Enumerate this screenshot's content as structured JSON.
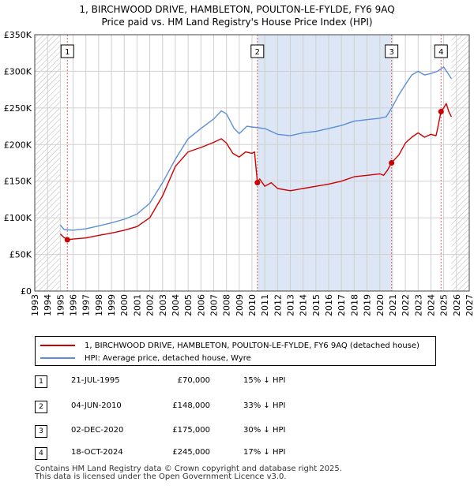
{
  "title_line1": "1, BIRCHWOOD DRIVE, HAMBLETON, POULTON-LE-FYLDE, FY6 9AQ",
  "title_line2": "Price paid vs. HM Land Registry's House Price Index (HPI)",
  "colors": {
    "property": "#cc0000",
    "hpi": "#5b8ed6",
    "shade": "#dde6f5",
    "hatch": "#aaaaaa",
    "grid": "#d0d0d0"
  },
  "chart_data": {
    "type": "line",
    "title": "Price paid vs. HM Land Registry's House Price Index (HPI)",
    "xlabel": "",
    "ylabel": "",
    "xlim": [
      1993,
      2027
    ],
    "ylim": [
      0,
      350000
    ],
    "y_ticks": [
      0,
      50000,
      100000,
      150000,
      200000,
      250000,
      300000,
      350000
    ],
    "y_tick_labels": [
      "£0",
      "£50K",
      "£100K",
      "£150K",
      "£200K",
      "£250K",
      "£300K",
      "£350K"
    ],
    "x_ticks": [
      "1993",
      "1994",
      "1995",
      "1996",
      "1997",
      "1998",
      "1999",
      "2000",
      "2001",
      "2002",
      "2003",
      "2004",
      "2005",
      "2006",
      "2007",
      "2008",
      "2009",
      "2010",
      "2011",
      "2012",
      "2013",
      "2014",
      "2015",
      "2016",
      "2017",
      "2018",
      "2019",
      "2020",
      "2021",
      "2022",
      "2023",
      "2024",
      "2025",
      "2026",
      "2027"
    ],
    "data_start": 1995.0,
    "data_end": 2025.6,
    "series": [
      {
        "name": "1, BIRCHWOOD DRIVE, HAMBLETON, POULTON-LE-FYLDE, FY6 9AQ (detached house)",
        "points": [
          [
            1995.0,
            78000
          ],
          [
            1995.3,
            73000
          ],
          [
            1995.55,
            70000
          ],
          [
            1996,
            71000
          ],
          [
            1997,
            72500
          ],
          [
            1998,
            76000
          ],
          [
            1999,
            79000
          ],
          [
            2000,
            83000
          ],
          [
            2001,
            88000
          ],
          [
            2002,
            100000
          ],
          [
            2003,
            130000
          ],
          [
            2004,
            170000
          ],
          [
            2005,
            190000
          ],
          [
            2006,
            196000
          ],
          [
            2007,
            203000
          ],
          [
            2007.6,
            208000
          ],
          [
            2008,
            202000
          ],
          [
            2008.5,
            188000
          ],
          [
            2009,
            183000
          ],
          [
            2009.5,
            190000
          ],
          [
            2010.0,
            188000
          ],
          [
            2010.2,
            190000
          ],
          [
            2010.42,
            148000
          ],
          [
            2010.6,
            153000
          ],
          [
            2011,
            143000
          ],
          [
            2011.5,
            148000
          ],
          [
            2012,
            140000
          ],
          [
            2013,
            137000
          ],
          [
            2014,
            140000
          ],
          [
            2015,
            143000
          ],
          [
            2016,
            146000
          ],
          [
            2017,
            150000
          ],
          [
            2018,
            156000
          ],
          [
            2019,
            158000
          ],
          [
            2020,
            160000
          ],
          [
            2020.3,
            158000
          ],
          [
            2020.6,
            165000
          ],
          [
            2020.92,
            175000
          ],
          [
            2021.5,
            186000
          ],
          [
            2022,
            202000
          ],
          [
            2022.5,
            210000
          ],
          [
            2023,
            216000
          ],
          [
            2023.5,
            210000
          ],
          [
            2024.0,
            214000
          ],
          [
            2024.4,
            212000
          ],
          [
            2024.5,
            220000
          ],
          [
            2024.79,
            245000
          ],
          [
            2025.0,
            250000
          ],
          [
            2025.2,
            256000
          ],
          [
            2025.4,
            245000
          ],
          [
            2025.6,
            238000
          ]
        ]
      },
      {
        "name": "HPI: Average price, detached house, Wyre",
        "points": [
          [
            1995.0,
            90000
          ],
          [
            1995.3,
            84000
          ],
          [
            1996,
            83000
          ],
          [
            1997,
            85000
          ],
          [
            1998,
            89000
          ],
          [
            1999,
            93000
          ],
          [
            2000,
            98000
          ],
          [
            2001,
            105000
          ],
          [
            2002,
            120000
          ],
          [
            2003,
            148000
          ],
          [
            2004,
            180000
          ],
          [
            2005,
            208000
          ],
          [
            2006,
            222000
          ],
          [
            2007,
            235000
          ],
          [
            2007.6,
            246000
          ],
          [
            2008,
            242000
          ],
          [
            2008.6,
            222000
          ],
          [
            2009,
            215000
          ],
          [
            2009.6,
            225000
          ],
          [
            2010,
            224000
          ],
          [
            2011,
            222000
          ],
          [
            2012,
            214000
          ],
          [
            2013,
            212000
          ],
          [
            2014,
            216000
          ],
          [
            2015,
            218000
          ],
          [
            2016,
            222000
          ],
          [
            2017,
            226000
          ],
          [
            2018,
            232000
          ],
          [
            2019,
            234000
          ],
          [
            2020,
            236000
          ],
          [
            2020.5,
            238000
          ],
          [
            2021,
            252000
          ],
          [
            2021.5,
            268000
          ],
          [
            2022,
            282000
          ],
          [
            2022.5,
            295000
          ],
          [
            2023,
            300000
          ],
          [
            2023.5,
            295000
          ],
          [
            2024,
            297000
          ],
          [
            2024.5,
            300000
          ],
          [
            2025,
            306000
          ],
          [
            2025.3,
            298000
          ],
          [
            2025.6,
            290000
          ]
        ]
      }
    ],
    "sales": [
      {
        "id": "1",
        "year": 1995.55,
        "price": 70000
      },
      {
        "id": "2",
        "year": 2010.42,
        "price": 148000
      },
      {
        "id": "3",
        "year": 2020.92,
        "price": 175000
      },
      {
        "id": "4",
        "year": 2024.79,
        "price": 245000
      }
    ],
    "shaded_periods": [
      [
        2010.42,
        2020.92
      ]
    ],
    "legend_position": "below"
  },
  "legend": {
    "property_label": "1, BIRCHWOOD DRIVE, HAMBLETON, POULTON-LE-FYLDE, FY6 9AQ (detached house)",
    "hpi_label": "HPI: Average price, detached house, Wyre"
  },
  "sales_table": [
    {
      "num": "1",
      "date": "21-JUL-1995",
      "price": "£70,000",
      "hpi": "15% ↓ HPI"
    },
    {
      "num": "2",
      "date": "04-JUN-2010",
      "price": "£148,000",
      "hpi": "33% ↓ HPI"
    },
    {
      "num": "3",
      "date": "02-DEC-2020",
      "price": "£175,000",
      "hpi": "30% ↓ HPI"
    },
    {
      "num": "4",
      "date": "18-OCT-2024",
      "price": "£245,000",
      "hpi": "17% ↓ HPI"
    }
  ],
  "footer_line1": "Contains HM Land Registry data © Crown copyright and database right 2025.",
  "footer_line2": "This data is licensed under the Open Government Licence v3.0."
}
